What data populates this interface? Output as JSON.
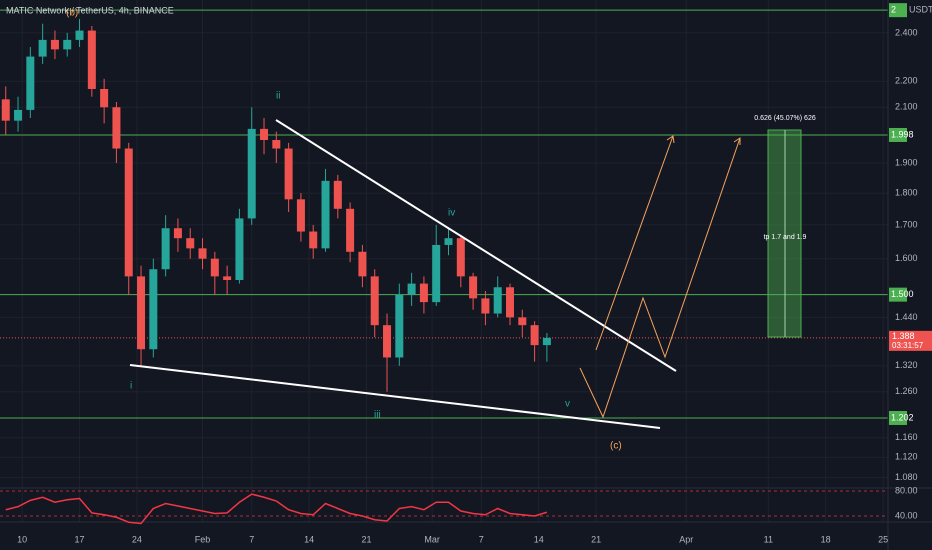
{
  "chart_data": {
    "type": "candlestick",
    "title": "MATIC Network / TetherUS, 4h, BINANCE",
    "log_scale": true,
    "grid": true,
    "up_color": "#26a69a",
    "down_color": "#ef5350",
    "x": [
      8,
      9.5,
      11,
      12.5,
      14,
      15.5,
      17,
      18.5,
      20,
      21.5,
      23,
      24.5,
      26,
      27.5,
      29,
      30.5,
      32,
      33.5,
      35,
      36.5,
      38,
      39.5,
      41,
      42.5,
      44,
      45.5,
      47,
      48.5,
      50,
      51.5,
      53,
      54.5,
      56,
      57.5,
      59,
      60.5,
      62,
      63.5,
      65,
      66.5,
      68,
      69.5,
      71,
      72.5,
      74
    ],
    "open": [
      2.13,
      2.05,
      2.09,
      2.3,
      2.37,
      2.33,
      2.37,
      2.41,
      2.17,
      2.1,
      1.95,
      1.55,
      1.36,
      1.57,
      1.69,
      1.66,
      1.63,
      1.6,
      1.55,
      1.54,
      1.72,
      2.02,
      1.98,
      1.95,
      1.78,
      1.68,
      1.63,
      1.84,
      1.75,
      1.62,
      1.55,
      1.42,
      1.34,
      1.5,
      1.53,
      1.48,
      1.64,
      1.66,
      1.55,
      1.49,
      1.45,
      1.52,
      1.44,
      1.42,
      1.37
    ],
    "high": [
      2.18,
      2.14,
      2.34,
      2.44,
      2.41,
      2.4,
      2.46,
      2.43,
      2.21,
      2.12,
      1.97,
      1.58,
      1.6,
      1.73,
      1.72,
      1.69,
      1.66,
      1.62,
      1.58,
      1.75,
      2.1,
      2.06,
      2.01,
      1.97,
      1.8,
      1.7,
      1.88,
      1.86,
      1.77,
      1.64,
      1.57,
      1.45,
      1.53,
      1.56,
      1.55,
      1.7,
      1.69,
      1.67,
      1.56,
      1.51,
      1.55,
      1.53,
      1.46,
      1.43,
      1.4
    ],
    "low": [
      2.0,
      2.01,
      2.06,
      2.27,
      2.29,
      2.3,
      2.34,
      2.14,
      2.04,
      1.9,
      1.5,
      1.32,
      1.34,
      1.55,
      1.62,
      1.6,
      1.57,
      1.5,
      1.5,
      1.53,
      1.7,
      1.93,
      1.9,
      1.74,
      1.65,
      1.6,
      1.62,
      1.72,
      1.59,
      1.52,
      1.39,
      1.26,
      1.32,
      1.47,
      1.45,
      1.47,
      1.61,
      1.52,
      1.46,
      1.42,
      1.44,
      1.42,
      1.39,
      1.33,
      1.33
    ],
    "close": [
      2.05,
      2.09,
      2.3,
      2.37,
      2.33,
      2.37,
      2.41,
      2.17,
      2.1,
      1.95,
      1.55,
      1.36,
      1.57,
      1.69,
      1.66,
      1.63,
      1.6,
      1.55,
      1.54,
      1.72,
      2.02,
      1.98,
      1.95,
      1.78,
      1.68,
      1.63,
      1.84,
      1.75,
      1.62,
      1.55,
      1.42,
      1.34,
      1.5,
      1.53,
      1.48,
      1.64,
      1.66,
      1.55,
      1.49,
      1.45,
      1.52,
      1.44,
      1.42,
      1.37,
      1.388
    ],
    "xlim": [
      7.3,
      115.6
    ],
    "xticks": [
      {
        "value": 10,
        "label": "10"
      },
      {
        "value": 17,
        "label": "17"
      },
      {
        "value": 24,
        "label": "24"
      },
      {
        "value": 32,
        "label": "Feb"
      },
      {
        "value": 38,
        "label": "7"
      },
      {
        "value": 45,
        "label": "14"
      },
      {
        "value": 52,
        "label": "21"
      },
      {
        "value": 60,
        "label": "Mar"
      },
      {
        "value": 66,
        "label": "7"
      },
      {
        "value": 73,
        "label": "14"
      },
      {
        "value": 80,
        "label": "21"
      },
      {
        "value": 91,
        "label": "Apr"
      },
      {
        "value": 101,
        "label": "11"
      },
      {
        "value": 108,
        "label": "18"
      },
      {
        "value": 115,
        "label": "25"
      }
    ],
    "ylim": [
      1.06,
      2.546
    ],
    "yticks": [
      {
        "value": 2.4,
        "label": "2.400"
      },
      {
        "value": 2.2,
        "label": "2.200"
      },
      {
        "value": 2.1,
        "label": "2.100"
      },
      {
        "value": 1.9,
        "label": "1.900"
      },
      {
        "value": 1.8,
        "label": "1.800"
      },
      {
        "value": 1.7,
        "label": "1.700"
      },
      {
        "value": 1.6,
        "label": "1.600"
      },
      {
        "value": 1.44,
        "label": "1.440"
      },
      {
        "value": 1.32,
        "label": "1.320"
      },
      {
        "value": 1.26,
        "label": "1.260"
      },
      {
        "value": 1.16,
        "label": "1.160"
      },
      {
        "value": 1.12,
        "label": "1.120"
      },
      {
        "value": 1.08,
        "label": "1.080"
      }
    ],
    "levels": [
      {
        "value": 2.5,
        "label": "2"
      },
      {
        "value": 1.998,
        "label": "1.998"
      },
      {
        "value": 1.5,
        "label": "1.500"
      },
      {
        "value": 1.202,
        "label": "1.202"
      }
    ],
    "level_color": "#4caf50",
    "unit": "USDT",
    "last_price": 1.388,
    "countdown": "03:31:57",
    "wave_labels": [
      "(b)",
      "i",
      "ii",
      "iii",
      "iv",
      "v",
      "(c)"
    ],
    "target_label": "0.626 (45.07%) 626",
    "target_note": "tp 1.7 and 1.9",
    "indicator": {
      "color": "#f23645",
      "values": [
        50,
        55,
        65,
        70,
        62,
        66,
        68,
        45,
        42,
        38,
        30,
        28,
        52,
        60,
        56,
        52,
        48,
        44,
        45,
        62,
        75,
        70,
        64,
        50,
        44,
        42,
        60,
        52,
        44,
        40,
        34,
        32,
        52,
        55,
        50,
        62,
        62,
        48,
        44,
        42,
        52,
        44,
        42,
        40,
        46
      ],
      "ylim": [
        30.4,
        84.8
      ],
      "yticks": [
        {
          "value": 80,
          "label": "80.00"
        },
        {
          "value": 40,
          "label": "40.00"
        }
      ]
    }
  }
}
